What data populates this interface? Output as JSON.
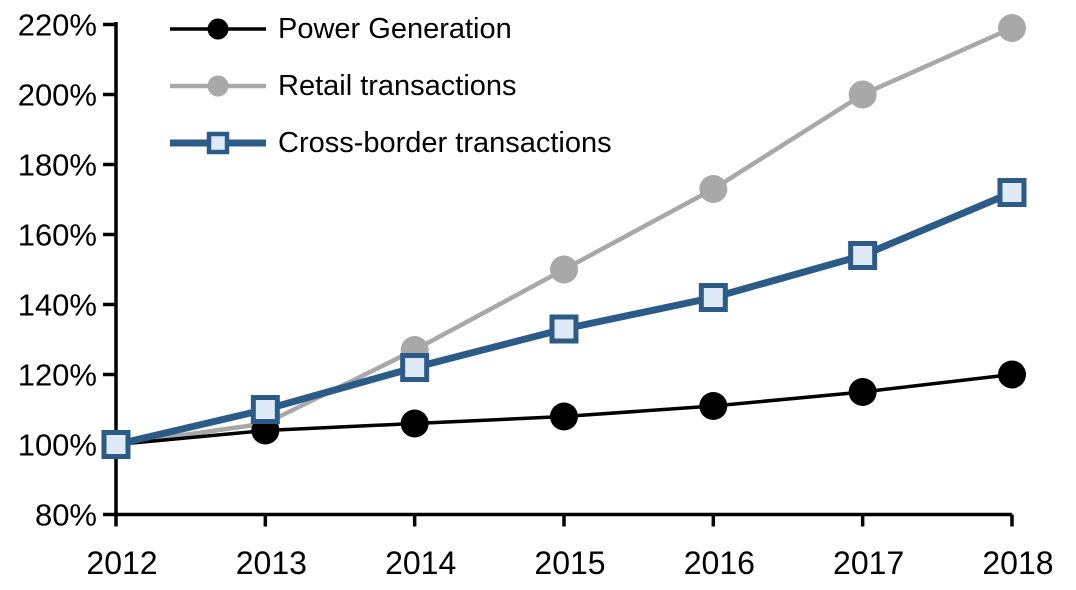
{
  "chart_data": {
    "type": "line",
    "title": "",
    "categories": [
      "2012",
      "2013",
      "2014",
      "2015",
      "2016",
      "2017",
      "2018"
    ],
    "series": [
      {
        "name": "Power Generation",
        "color": "#000000",
        "marker": "circle",
        "marker_fill": "#000000",
        "line_width": 3.5,
        "values": [
          100,
          104,
          106,
          108,
          111,
          115,
          120
        ]
      },
      {
        "name": "Retail transactions",
        "color": "#A8A8A8",
        "marker": "circle",
        "marker_fill": "#A8A8A8",
        "line_width": 4.5,
        "values": [
          100,
          106,
          127,
          150,
          173,
          200,
          219
        ]
      },
      {
        "name": "Cross-border transactions",
        "color": "#2D5B88",
        "marker": "square",
        "marker_fill": "#DEEAF5",
        "line_width": 7,
        "values": [
          100,
          110,
          122,
          133,
          142,
          154,
          172
        ]
      }
    ],
    "y_axis": {
      "min": 80,
      "max": 220,
      "step": 20,
      "tick_labels": [
        "80%",
        "100%",
        "120%",
        "140%",
        "160%",
        "180%",
        "200%",
        "220%"
      ]
    },
    "x_axis": {
      "tick_labels": [
        "2012",
        "2013",
        "2014",
        "2015",
        "2016",
        "2017",
        "2018"
      ]
    },
    "legend_position": "top-left",
    "grid": false,
    "axis_color": "#000000",
    "background_color": "#FFFFFF",
    "draw_order": [
      1,
      0,
      2
    ]
  }
}
